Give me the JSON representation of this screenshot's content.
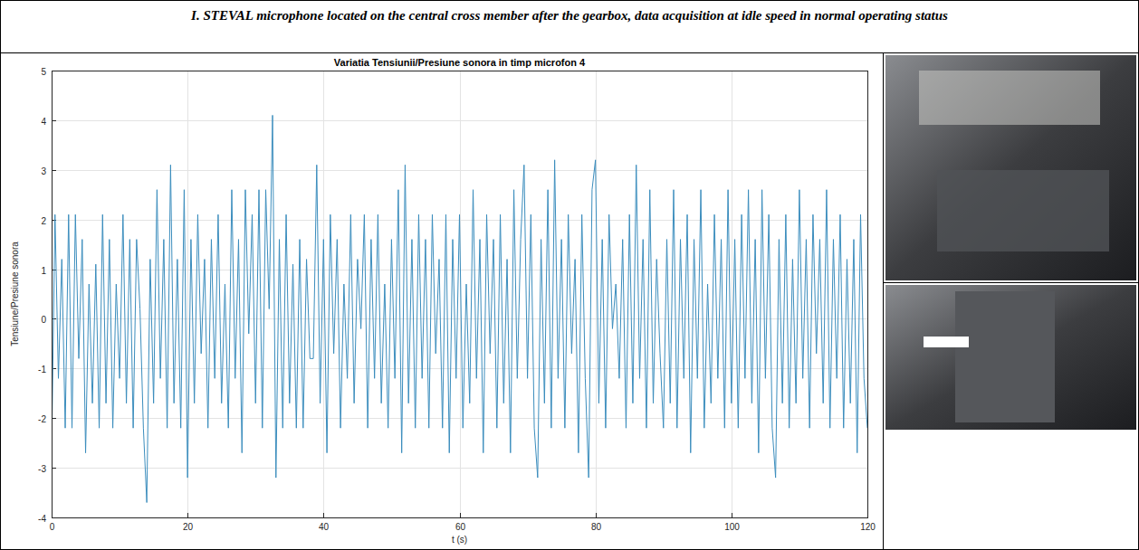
{
  "header": {
    "title": "I. STEVAL microphone located on the central cross member after the gearbox, data acquisition at idle speed in normal operating status"
  },
  "chart_data": {
    "type": "line",
    "title": "Variatia Tensiunii/Presiune sonora in timp microfon 4",
    "x_label": "t (s)",
    "y_label": "Tensiune/Presiune sonora",
    "color": "#3b8dbd",
    "grid": true,
    "xlim": [
      0,
      120
    ],
    "ylim": [
      -4,
      5
    ],
    "xticks": [
      0,
      20,
      40,
      60,
      80,
      100,
      120
    ],
    "yticks": [
      -4,
      -3,
      -2,
      -1,
      0,
      1,
      2,
      3,
      4,
      5
    ],
    "x": [
      0,
      0.5,
      1,
      1.5,
      2,
      2.5,
      3,
      3.5,
      4,
      4.5,
      5,
      5.5,
      6,
      6.5,
      7,
      7.5,
      8,
      8.5,
      9,
      9.5,
      10,
      10.5,
      11,
      11.5,
      12,
      12.5,
      13,
      13.5,
      14,
      14.5,
      15,
      15.5,
      16,
      16.5,
      17,
      17.5,
      18,
      18.5,
      19,
      19.5,
      20,
      20.5,
      21,
      21.5,
      22,
      22.5,
      23,
      23.5,
      24,
      24.5,
      25,
      25.5,
      26,
      26.5,
      27,
      27.5,
      28,
      28.5,
      29,
      29.5,
      30,
      30.5,
      31,
      31.5,
      32,
      32.5,
      33,
      33.5,
      34,
      34.5,
      35,
      35.5,
      36,
      36.5,
      37,
      37.5,
      38,
      38.5,
      39,
      39.5,
      40,
      40.5,
      41,
      41.5,
      42,
      42.5,
      43,
      43.5,
      44,
      44.5,
      45,
      45.5,
      46,
      46.5,
      47,
      47.5,
      48,
      48.5,
      49,
      49.5,
      50,
      50.5,
      51,
      51.5,
      52,
      52.5,
      53,
      53.5,
      54,
      54.5,
      55,
      55.5,
      56,
      56.5,
      57,
      57.5,
      58,
      58.5,
      59,
      59.5,
      60,
      60.5,
      61,
      61.5,
      62,
      62.5,
      63,
      63.5,
      64,
      64.5,
      65,
      65.5,
      66,
      66.5,
      67,
      67.5,
      68,
      68.5,
      69,
      69.5,
      70,
      70.5,
      71,
      71.5,
      72,
      72.5,
      73,
      73.5,
      74,
      74.5,
      75,
      75.5,
      76,
      76.5,
      77,
      77.5,
      78,
      78.5,
      79,
      79.5,
      80,
      80.5,
      81,
      81.5,
      82,
      82.5,
      83,
      83.5,
      84,
      84.5,
      85,
      85.5,
      86,
      86.5,
      87,
      87.5,
      88,
      88.5,
      89,
      89.5,
      90,
      90.5,
      91,
      91.5,
      92,
      92.5,
      93,
      93.5,
      94,
      94.5,
      95,
      95.5,
      96,
      96.5,
      97,
      97.5,
      98,
      98.5,
      99,
      99.5,
      100,
      100.5,
      101,
      101.5,
      102,
      102.5,
      103,
      103.5,
      104,
      104.5,
      105,
      105.5,
      106,
      106.5,
      107,
      107.5,
      108,
      108.5,
      109,
      109.5,
      110,
      110.5,
      111,
      111.5,
      112,
      112.5,
      113,
      113.5,
      114,
      114.5,
      115,
      115.5,
      116,
      116.5,
      117,
      117.5,
      118,
      118.5,
      119,
      119.5,
      120
    ],
    "values": [
      -2.7,
      2.1,
      -1.2,
      1.2,
      -2.2,
      2.1,
      -2.2,
      2.1,
      -0.8,
      1.6,
      -2.7,
      0.7,
      -1.7,
      1.1,
      -2.2,
      2.1,
      -1.7,
      1.6,
      -2.2,
      0.7,
      -1.2,
      2.1,
      -1.7,
      1.6,
      -2.2,
      1.6,
      0.2,
      -2.2,
      -3.7,
      1.2,
      -1.7,
      2.6,
      -1.2,
      1.6,
      -2.2,
      3.1,
      -1.7,
      1.2,
      -2.2,
      2.6,
      -3.2,
      1.6,
      -1.7,
      2.1,
      -0.7,
      1.2,
      -2.2,
      1.6,
      -1.2,
      2.1,
      -1.7,
      0.7,
      -2.2,
      2.6,
      -1.2,
      1.6,
      -2.7,
      2.6,
      -0.3,
      2.1,
      -1.7,
      2.6,
      -2.2,
      2.6,
      0.2,
      4.1,
      -3.2,
      1.6,
      -2.2,
      2.1,
      -1.7,
      1.1,
      -2.2,
      1.6,
      -2.2,
      1.2,
      -0.8,
      -0.8,
      3.1,
      -1.7,
      1.6,
      -2.7,
      2.1,
      -0.7,
      1.6,
      -2.2,
      0.7,
      -1.2,
      2.1,
      -1.7,
      1.2,
      -0.2,
      2.1,
      -2.2,
      1.6,
      -1.2,
      2.1,
      -1.7,
      0.7,
      -2.2,
      1.6,
      -1.2,
      2.6,
      -2.7,
      3.1,
      -1.7,
      1.6,
      -2.2,
      2.1,
      -1.2,
      1.6,
      -2.2,
      2.1,
      -0.7,
      1.2,
      -2.2,
      2.1,
      -2.7,
      1.6,
      -1.2,
      2.1,
      -2.2,
      0.7,
      -1.7,
      2.6,
      -1.2,
      1.6,
      -2.7,
      2.1,
      -0.7,
      1.6,
      -2.2,
      2.1,
      -1.7,
      1.2,
      -2.7,
      2.6,
      -1.2,
      1.6,
      3.1,
      -1.2,
      2.1,
      -2.2,
      -3.2,
      1.6,
      -1.7,
      2.6,
      -2.2,
      3.2,
      -1.2,
      1.6,
      -2.2,
      2.1,
      -0.7,
      1.2,
      -2.7,
      2.1,
      -1.2,
      -3.2,
      2.6,
      3.2,
      -1.7,
      1.6,
      -2.2,
      2.1,
      -0.2,
      0.7,
      -1.2,
      1.6,
      -2.2,
      2.1,
      -1.7,
      3.1,
      -1.2,
      1.6,
      -2.2,
      2.6,
      -1.7,
      1.2,
      -0.7,
      -2.2,
      1.6,
      -1.7,
      2.6,
      -2.2,
      1.6,
      -1.2,
      2.1,
      -2.7,
      1.6,
      -1.2,
      2.6,
      -2.2,
      0.7,
      -1.7,
      2.1,
      -1.2,
      1.6,
      -2.2,
      2.6,
      -1.7,
      1.6,
      -2.2,
      2.1,
      -1.2,
      2.6,
      -1.7,
      1.6,
      -2.7,
      2.6,
      -1.2,
      2.1,
      -2.2,
      -3.2,
      1.6,
      -1.7,
      2.1,
      -2.2,
      1.2,
      -1.7,
      2.6,
      -1.2,
      1.6,
      -2.2,
      2.1,
      -0.7,
      1.6,
      -1.7,
      2.6,
      -2.2,
      1.6,
      -1.2,
      2.1,
      -2.2,
      1.2,
      -1.7,
      1.6,
      -2.7,
      2.1,
      -1.2,
      -2.2
    ]
  }
}
